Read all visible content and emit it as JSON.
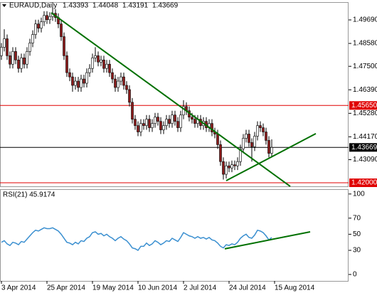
{
  "chart_data": {
    "type": "candlestick",
    "title": "EURAUD,Daily",
    "quote": [
      "1.43393",
      "1.44048",
      "1.43191",
      "1.43669"
    ],
    "up_color": "#ffffff",
    "down_color": "#8b1a1a",
    "outline_color": "#000000",
    "xlim": [
      -0.5,
      122
    ],
    "ylim": [
      1.41832,
      1.5053
    ],
    "xticks": [
      {
        "value": 0,
        "label": "3 Apr 2014"
      },
      {
        "value": 16,
        "label": "25 Apr 2014"
      },
      {
        "value": 32,
        "label": "19 May 2014"
      },
      {
        "value": 48,
        "label": "10 Jun 2014"
      },
      {
        "value": 64,
        "label": "2 Jul 2014"
      },
      {
        "value": 80,
        "label": "24 Jul 2014"
      },
      {
        "value": 96,
        "label": "15 Aug 2014"
      }
    ],
    "yticks": [
      {
        "value": 1.4969,
        "label": "1.49690"
      },
      {
        "value": 1.4858,
        "label": "1.48580"
      },
      {
        "value": 1.475,
        "label": "1.47500"
      },
      {
        "value": 1.4639,
        "label": "1.46390"
      },
      {
        "value": 1.4528,
        "label": "1.45280"
      },
      {
        "value": 1.4417,
        "label": "1.44170"
      },
      {
        "value": 1.4309,
        "label": "1.43090"
      }
    ],
    "levels": [
      {
        "value": 1.4565,
        "label": "1.45650",
        "color": "#e00000"
      },
      {
        "value": 1.43669,
        "label": "1.43669",
        "color": "#000000"
      },
      {
        "value": 1.42,
        "label": "1.42000",
        "color": "#e00000"
      }
    ],
    "open": [
      1.48,
      1.484,
      1.488,
      1.48,
      1.476,
      1.482,
      1.478,
      1.474,
      1.479,
      1.476,
      1.482,
      1.486,
      1.49,
      1.495,
      1.493,
      1.496,
      1.499,
      1.497,
      1.4985,
      1.5,
      1.498,
      1.495,
      1.489,
      1.48,
      1.472,
      1.47,
      1.466,
      1.468,
      1.465,
      1.469,
      1.467,
      1.472,
      1.474,
      1.479,
      1.48,
      1.477,
      1.478,
      1.474,
      1.476,
      1.472,
      1.469,
      1.465,
      1.468,
      1.47,
      1.466,
      1.464,
      1.458,
      1.45,
      1.447,
      1.444,
      1.448,
      1.447,
      1.45,
      1.446,
      1.448,
      1.451,
      1.449,
      1.445,
      1.447,
      1.45,
      1.448,
      1.452,
      1.449,
      1.446,
      1.452,
      1.456,
      1.454,
      1.451,
      1.45,
      1.448,
      1.45,
      1.447,
      1.449,
      1.446,
      1.448,
      1.444,
      1.443,
      1.438,
      1.43,
      1.424,
      1.428,
      1.427,
      1.4285,
      1.428,
      1.43,
      1.436,
      1.441,
      1.443,
      1.439,
      1.437,
      1.442,
      1.447,
      1.446,
      1.444,
      1.44,
      1.43393
    ],
    "high": [
      1.486,
      1.4925,
      1.49,
      1.482,
      1.484,
      1.484,
      1.48,
      1.481,
      1.481,
      1.484,
      1.488,
      1.492,
      1.497,
      1.497,
      1.498,
      1.501,
      1.501,
      1.5005,
      1.503,
      1.502,
      1.5,
      1.497,
      1.491,
      1.482,
      1.474,
      1.472,
      1.47,
      1.47,
      1.471,
      1.471,
      1.474,
      1.476,
      1.481,
      1.484,
      1.482,
      1.48,
      1.48,
      1.478,
      1.478,
      1.474,
      1.471,
      1.47,
      1.472,
      1.472,
      1.468,
      1.466,
      1.46,
      1.452,
      1.449,
      1.45,
      1.45,
      1.452,
      1.452,
      1.45,
      1.453,
      1.453,
      1.451,
      1.449,
      1.452,
      1.452,
      1.454,
      1.454,
      1.451,
      1.454,
      1.459,
      1.458,
      1.456,
      1.453,
      1.452,
      1.452,
      1.452,
      1.451,
      1.451,
      1.45,
      1.45,
      1.446,
      1.445,
      1.44,
      1.432,
      1.43,
      1.43,
      1.4305,
      1.4305,
      1.432,
      1.438,
      1.443,
      1.445,
      1.445,
      1.441,
      1.444,
      1.449,
      1.449,
      1.448,
      1.446,
      1.442,
      1.44048
    ],
    "low": [
      1.478,
      1.482,
      1.478,
      1.474,
      1.474,
      1.476,
      1.472,
      1.472,
      1.474,
      1.474,
      1.48,
      1.484,
      1.488,
      1.491,
      1.491,
      1.494,
      1.495,
      1.495,
      1.4965,
      1.496,
      1.493,
      1.487,
      1.478,
      1.47,
      1.468,
      1.463,
      1.464,
      1.463,
      1.463,
      1.465,
      1.465,
      1.47,
      1.472,
      1.477,
      1.475,
      1.475,
      1.472,
      1.472,
      1.47,
      1.467,
      1.463,
      1.463,
      1.466,
      1.464,
      1.462,
      1.456,
      1.448,
      1.445,
      1.442,
      1.442,
      1.445,
      1.445,
      1.444,
      1.444,
      1.446,
      1.447,
      1.443,
      1.443,
      1.445,
      1.446,
      1.446,
      1.447,
      1.444,
      1.444,
      1.45,
      1.452,
      1.449,
      1.448,
      1.446,
      1.446,
      1.445,
      1.445,
      1.444,
      1.444,
      1.442,
      1.441,
      1.436,
      1.428,
      1.4215,
      1.422,
      1.425,
      1.425,
      1.426,
      1.426,
      1.428,
      1.434,
      1.439,
      1.437,
      1.43,
      1.435,
      1.44,
      1.444,
      1.442,
      1.438,
      1.432,
      1.43191
    ],
    "close": [
      1.484,
      1.488,
      1.48,
      1.476,
      1.482,
      1.478,
      1.474,
      1.479,
      1.476,
      1.482,
      1.486,
      1.49,
      1.495,
      1.493,
      1.496,
      1.499,
      1.497,
      1.4985,
      1.5,
      1.498,
      1.495,
      1.489,
      1.48,
      1.472,
      1.47,
      1.466,
      1.468,
      1.465,
      1.469,
      1.467,
      1.472,
      1.474,
      1.479,
      1.48,
      1.477,
      1.478,
      1.474,
      1.476,
      1.472,
      1.469,
      1.465,
      1.468,
      1.47,
      1.466,
      1.464,
      1.458,
      1.45,
      1.447,
      1.444,
      1.448,
      1.447,
      1.45,
      1.446,
      1.448,
      1.451,
      1.449,
      1.445,
      1.447,
      1.45,
      1.448,
      1.452,
      1.449,
      1.446,
      1.452,
      1.456,
      1.454,
      1.451,
      1.45,
      1.448,
      1.45,
      1.447,
      1.449,
      1.446,
      1.448,
      1.444,
      1.443,
      1.438,
      1.43,
      1.424,
      1.428,
      1.427,
      1.4285,
      1.428,
      1.43,
      1.436,
      1.441,
      1.443,
      1.439,
      1.437,
      1.442,
      1.447,
      1.446,
      1.444,
      1.44,
      1.4339,
      1.43669
    ],
    "trendlines": [
      {
        "color": "#007000",
        "points": [
          [
            17.5,
            1.5003
          ],
          [
            101.5,
            1.4183
          ]
        ]
      },
      {
        "color": "#007000",
        "points": [
          [
            79,
            1.421
          ],
          [
            110.5,
            1.4432
          ]
        ]
      }
    ],
    "rsi": {
      "label": "RSI(21) 45.9174",
      "color": "#3a8fd0",
      "ylim": [
        -8,
        106
      ],
      "yticks": [
        100,
        70,
        50,
        30,
        0
      ],
      "values": [
        40,
        42,
        38,
        36,
        40,
        39,
        37,
        41,
        40,
        44,
        48,
        52,
        55,
        54,
        56,
        58,
        57,
        57,
        58,
        56,
        54,
        50,
        45,
        40,
        39,
        37,
        40,
        38,
        42,
        41,
        45,
        47,
        52,
        53,
        50,
        51,
        48,
        50,
        47,
        45,
        42,
        45,
        47,
        44,
        42,
        38,
        33,
        32,
        30,
        35,
        35,
        39,
        36,
        38,
        42,
        40,
        37,
        39,
        42,
        41,
        45,
        43,
        41,
        46,
        52,
        50,
        48,
        47,
        45,
        47,
        45,
        46,
        44,
        46,
        43,
        42,
        39,
        35,
        33,
        37,
        36,
        38,
        37,
        40,
        45,
        48,
        50,
        46,
        45,
        49,
        55,
        54,
        52,
        48,
        43,
        45.9174
      ],
      "trendline": {
        "color": "#007000",
        "points": [
          [
            78.5,
            31.9
          ],
          [
            108.5,
            53
          ]
        ]
      }
    }
  }
}
